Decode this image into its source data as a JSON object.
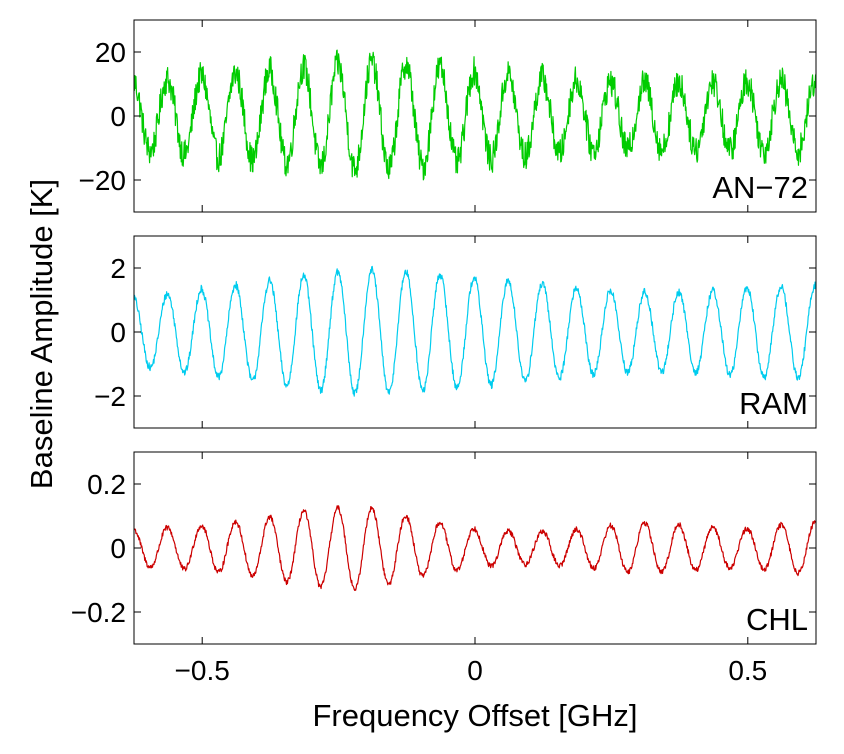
{
  "chart_data": {
    "type": "line",
    "xlabel": "Frequency Offset [GHz]",
    "ylabel": "Baseline Amplitude [K]",
    "xlim": [
      -0.625,
      0.625
    ],
    "xticks": [
      -0.5,
      0,
      0.5
    ],
    "xtick_labels": [
      "−0.5",
      "0",
      "0.5"
    ],
    "grid": false,
    "panels": [
      {
        "label": "AN−72",
        "color": "#00cc00",
        "ylim": [
          -30,
          30
        ],
        "yticks": [
          20,
          0,
          -20
        ],
        "ytick_labels": [
          "20",
          "0",
          "−20"
        ],
        "period_ghz": 0.0625,
        "noise": 0.15,
        "x": [
          -0.6,
          -0.5,
          -0.4,
          -0.3,
          -0.2,
          -0.1,
          0.0,
          0.1,
          0.2,
          0.3,
          0.4,
          0.5,
          0.6
        ],
        "envelope": [
          11,
          12.5,
          14,
          15.5,
          17,
          16,
          14,
          12.5,
          11,
          10.5,
          10.5,
          11,
          11
        ]
      },
      {
        "label": "RAM",
        "color": "#00ccee",
        "ylim": [
          -3,
          3
        ],
        "yticks": [
          2,
          0,
          -2
        ],
        "ytick_labels": [
          "2",
          "0",
          "−2"
        ],
        "period_ghz": 0.0625,
        "noise": 0.04,
        "x": [
          -0.6,
          -0.5,
          -0.4,
          -0.3,
          -0.2,
          -0.1,
          0.0,
          0.1,
          0.2,
          0.3,
          0.4,
          0.5,
          0.6
        ],
        "envelope": [
          1.1,
          1.35,
          1.55,
          1.8,
          1.95,
          1.85,
          1.7,
          1.55,
          1.35,
          1.25,
          1.25,
          1.4,
          1.45
        ]
      },
      {
        "label": "CHL",
        "color": "#cc0000",
        "ylim": [
          -0.3,
          0.3
        ],
        "yticks": [
          0.2,
          0,
          -0.2
        ],
        "ytick_labels": [
          "0.2",
          "0",
          "−0.2"
        ],
        "period_ghz": 0.0625,
        "noise": 0.028,
        "x": [
          -0.6,
          -0.5,
          -0.4,
          -0.3,
          -0.2,
          -0.1,
          0.0,
          0.1,
          0.2,
          0.3,
          0.4,
          0.5,
          0.6
        ],
        "envelope": [
          0.06,
          0.07,
          0.09,
          0.12,
          0.13,
          0.09,
          0.06,
          0.05,
          0.06,
          0.08,
          0.07,
          0.06,
          0.08
        ]
      }
    ]
  }
}
